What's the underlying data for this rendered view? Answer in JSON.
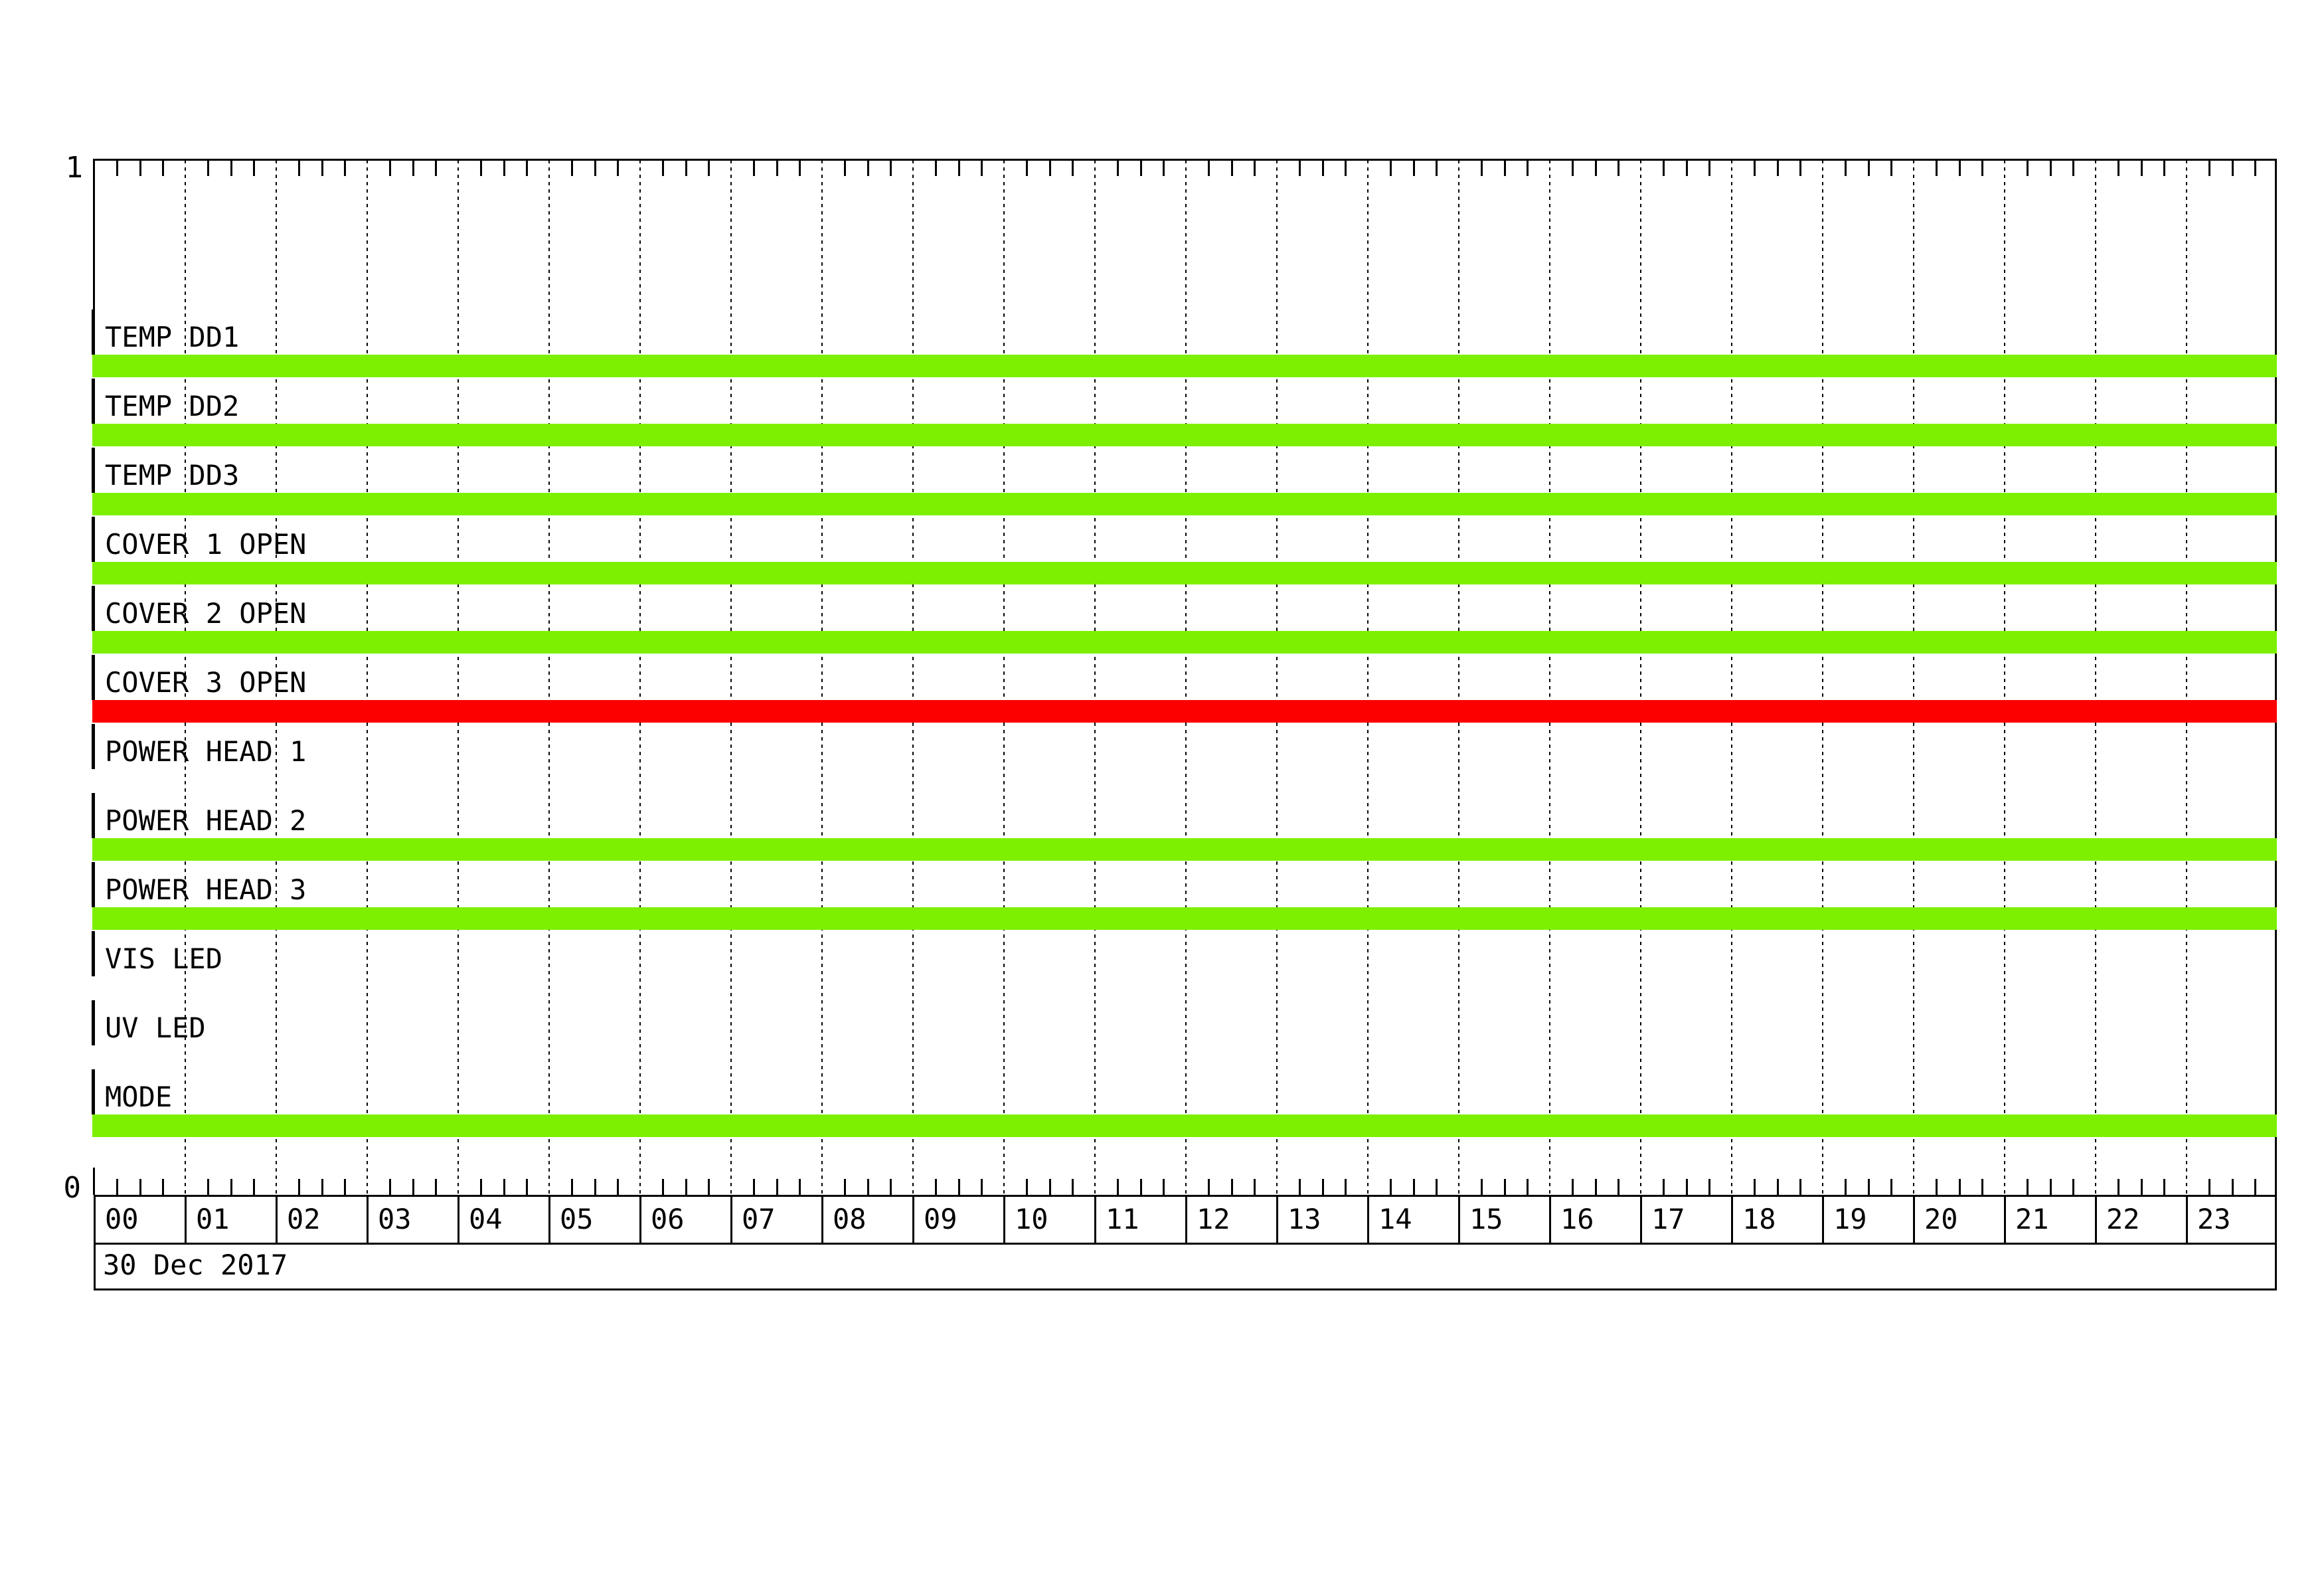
{
  "page": {
    "title": "daily status timeline plot",
    "date_label": "30 Dec 2017",
    "y_axis_top_label": "1",
    "y_axis_bottom_label": "0"
  },
  "chart_data": {
    "type": "timeline_status",
    "title": "",
    "date": "30 Dec 2017",
    "y_axis": {
      "top_label": "1",
      "bottom_label": "0",
      "range": [
        0,
        1
      ]
    },
    "x_axis": {
      "hours": [
        "00",
        "01",
        "02",
        "03",
        "04",
        "05",
        "06",
        "07",
        "08",
        "09",
        "10",
        "11",
        "12",
        "13",
        "14",
        "15",
        "16",
        "17",
        "18",
        "19",
        "20",
        "21",
        "22",
        "23"
      ],
      "minor_tick_minutes": 15,
      "gridline_style": "dashed-per-hour"
    },
    "colors": {
      "on_green": "#7CF000",
      "alert_red": "#FC0000",
      "line_black": "#000000"
    },
    "rows": [
      {
        "label": "TEMP DD1",
        "value": 1,
        "status": "on",
        "bar_color": "#7CF000",
        "span_hours": [
          0,
          24
        ]
      },
      {
        "label": "TEMP DD2",
        "value": 1,
        "status": "on",
        "bar_color": "#7CF000",
        "span_hours": [
          0,
          24
        ]
      },
      {
        "label": "TEMP DD3",
        "value": 1,
        "status": "on",
        "bar_color": "#7CF000",
        "span_hours": [
          0,
          24
        ]
      },
      {
        "label": "COVER 1 OPEN",
        "value": 1,
        "status": "on",
        "bar_color": "#7CF000",
        "span_hours": [
          0,
          24
        ]
      },
      {
        "label": "COVER 2 OPEN",
        "value": 1,
        "status": "on",
        "bar_color": "#7CF000",
        "span_hours": [
          0,
          24
        ]
      },
      {
        "label": "COVER 3 OPEN",
        "value": 1,
        "status": "alert",
        "bar_color": "#FC0000",
        "span_hours": [
          0,
          24
        ]
      },
      {
        "label": "POWER HEAD 1",
        "value": 0,
        "status": "off",
        "bar_color": null,
        "span_hours": null
      },
      {
        "label": "POWER HEAD 2",
        "value": 1,
        "status": "on",
        "bar_color": "#7CF000",
        "span_hours": [
          0,
          24
        ]
      },
      {
        "label": "POWER HEAD 3",
        "value": 1,
        "status": "on",
        "bar_color": "#7CF000",
        "span_hours": [
          0,
          24
        ]
      },
      {
        "label": "VIS LED",
        "value": 0,
        "status": "off",
        "bar_color": null,
        "span_hours": null
      },
      {
        "label": "UV LED",
        "value": 0,
        "status": "off",
        "bar_color": null,
        "span_hours": null
      },
      {
        "label": "MODE",
        "value": 1,
        "status": "on",
        "bar_color": "#7CF000",
        "span_hours": [
          0,
          24
        ]
      }
    ]
  }
}
